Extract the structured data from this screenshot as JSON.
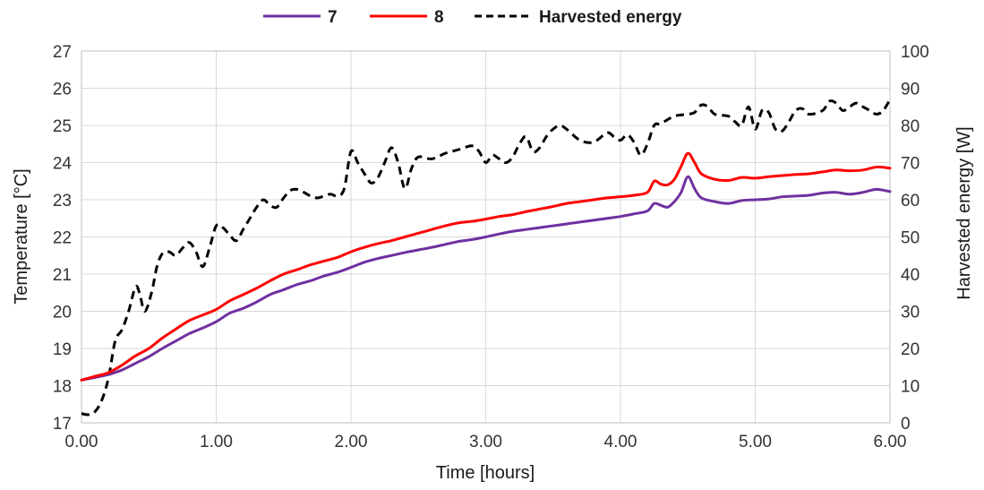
{
  "chart_data": {
    "type": "line",
    "xlabel": "Time [hours]",
    "ylabel": "Temperature [°C]",
    "ylabel_right": "Harvested energy [W]",
    "xlim": [
      0,
      6
    ],
    "ylim": [
      17,
      27
    ],
    "ylim_right": [
      0,
      100
    ],
    "x_ticks": [
      "0.00",
      "1.00",
      "2.00",
      "3.00",
      "4.00",
      "5.00",
      "6.00"
    ],
    "y_ticks": [
      "17",
      "18",
      "19",
      "20",
      "21",
      "22",
      "23",
      "24",
      "25",
      "26",
      "27"
    ],
    "y_ticks_right": [
      "0",
      "10",
      "20",
      "30",
      "40",
      "50",
      "60",
      "70",
      "80",
      "90",
      "100"
    ],
    "grid": true,
    "legend_position": "top-center",
    "series": [
      {
        "name": "7",
        "axis": "left",
        "color": "#7030a0",
        "dash": "solid",
        "x": [
          0,
          0.1,
          0.2,
          0.3,
          0.4,
          0.5,
          0.6,
          0.7,
          0.8,
          0.9,
          1.0,
          1.1,
          1.2,
          1.3,
          1.4,
          1.5,
          1.6,
          1.7,
          1.8,
          1.9,
          2.0,
          2.1,
          2.2,
          2.3,
          2.4,
          2.5,
          2.6,
          2.7,
          2.8,
          2.9,
          3.0,
          3.1,
          3.2,
          3.3,
          3.4,
          3.5,
          3.6,
          3.7,
          3.8,
          3.9,
          4.0,
          4.1,
          4.2,
          4.25,
          4.3,
          4.35,
          4.4,
          4.45,
          4.5,
          4.55,
          4.6,
          4.7,
          4.8,
          4.9,
          5.0,
          5.1,
          5.2,
          5.3,
          5.4,
          5.5,
          5.6,
          5.7,
          5.8,
          5.9,
          6.0
        ],
        "values": [
          18.15,
          18.22,
          18.3,
          18.42,
          18.6,
          18.78,
          19.0,
          19.2,
          19.4,
          19.55,
          19.72,
          19.95,
          20.08,
          20.25,
          20.45,
          20.58,
          20.72,
          20.82,
          20.95,
          21.05,
          21.18,
          21.32,
          21.42,
          21.5,
          21.58,
          21.65,
          21.72,
          21.8,
          21.88,
          21.93,
          22.0,
          22.08,
          22.15,
          22.2,
          22.25,
          22.3,
          22.35,
          22.4,
          22.45,
          22.5,
          22.55,
          22.62,
          22.7,
          22.9,
          22.85,
          22.8,
          22.95,
          23.2,
          23.62,
          23.3,
          23.05,
          22.95,
          22.9,
          22.98,
          23.0,
          23.02,
          23.08,
          23.1,
          23.12,
          23.18,
          23.2,
          23.15,
          23.2,
          23.28,
          23.22
        ]
      },
      {
        "name": "8",
        "axis": "left",
        "color": "#ff0000",
        "dash": "solid",
        "x": [
          0,
          0.1,
          0.2,
          0.3,
          0.4,
          0.5,
          0.6,
          0.7,
          0.8,
          0.9,
          1.0,
          1.1,
          1.2,
          1.3,
          1.4,
          1.5,
          1.6,
          1.7,
          1.8,
          1.9,
          2.0,
          2.1,
          2.2,
          2.3,
          2.4,
          2.5,
          2.6,
          2.7,
          2.8,
          2.9,
          3.0,
          3.1,
          3.2,
          3.3,
          3.4,
          3.5,
          3.6,
          3.7,
          3.8,
          3.9,
          4.0,
          4.1,
          4.2,
          4.25,
          4.3,
          4.35,
          4.4,
          4.45,
          4.5,
          4.55,
          4.6,
          4.7,
          4.8,
          4.9,
          5.0,
          5.1,
          5.2,
          5.3,
          5.4,
          5.5,
          5.6,
          5.7,
          5.8,
          5.9,
          6.0
        ],
        "values": [
          18.15,
          18.25,
          18.35,
          18.55,
          18.8,
          19.0,
          19.28,
          19.52,
          19.75,
          19.9,
          20.05,
          20.28,
          20.45,
          20.62,
          20.82,
          21.0,
          21.12,
          21.25,
          21.35,
          21.45,
          21.6,
          21.72,
          21.82,
          21.9,
          22.0,
          22.1,
          22.2,
          22.3,
          22.38,
          22.42,
          22.48,
          22.55,
          22.6,
          22.68,
          22.75,
          22.82,
          22.9,
          22.95,
          23.0,
          23.05,
          23.08,
          23.12,
          23.2,
          23.5,
          23.42,
          23.4,
          23.55,
          23.9,
          24.25,
          24.0,
          23.7,
          23.55,
          23.52,
          23.6,
          23.58,
          23.62,
          23.65,
          23.68,
          23.7,
          23.75,
          23.8,
          23.78,
          23.8,
          23.88,
          23.85
        ]
      },
      {
        "name": "Harvested energy",
        "axis": "right",
        "color": "#000000",
        "dash": "dashed",
        "x": [
          0,
          0.05,
          0.1,
          0.15,
          0.2,
          0.25,
          0.3,
          0.35,
          0.4,
          0.43,
          0.47,
          0.52,
          0.56,
          0.6,
          0.65,
          0.7,
          0.75,
          0.8,
          0.85,
          0.9,
          0.95,
          1.0,
          1.05,
          1.1,
          1.15,
          1.2,
          1.25,
          1.3,
          1.35,
          1.4,
          1.45,
          1.5,
          1.55,
          1.6,
          1.65,
          1.7,
          1.75,
          1.8,
          1.85,
          1.9,
          1.95,
          2.0,
          2.05,
          2.1,
          2.15,
          2.2,
          2.25,
          2.3,
          2.35,
          2.4,
          2.45,
          2.5,
          2.6,
          2.7,
          2.8,
          2.9,
          2.95,
          3.0,
          3.05,
          3.1,
          3.15,
          3.2,
          3.25,
          3.3,
          3.35,
          3.4,
          3.45,
          3.5,
          3.55,
          3.6,
          3.7,
          3.8,
          3.9,
          3.95,
          4.0,
          4.05,
          4.1,
          4.15,
          4.2,
          4.25,
          4.3,
          4.4,
          4.5,
          4.55,
          4.6,
          4.65,
          4.7,
          4.8,
          4.85,
          4.9,
          4.95,
          5.0,
          5.05,
          5.1,
          5.15,
          5.2,
          5.25,
          5.3,
          5.35,
          5.4,
          5.5,
          5.55,
          5.6,
          5.65,
          5.7,
          5.75,
          5.8,
          5.85,
          5.9,
          5.95,
          6.0
        ],
        "values": [
          2.5,
          2.2,
          3.0,
          6.0,
          12.0,
          22.0,
          25.0,
          30.0,
          36.5,
          35.0,
          30.0,
          35.0,
          42.0,
          45.5,
          46.0,
          45.0,
          47.0,
          48.5,
          46.0,
          42.0,
          47.0,
          53.0,
          52.5,
          50.5,
          49.0,
          52.0,
          55.0,
          58.0,
          60.0,
          58.5,
          58.0,
          60.5,
          62.5,
          62.8,
          62.0,
          61.0,
          60.5,
          61.0,
          61.5,
          61.0,
          63.0,
          73.0,
          70.0,
          67.0,
          64.5,
          66.0,
          70.0,
          74.0,
          70.0,
          63.0,
          68.5,
          71.5,
          71.0,
          72.5,
          73.5,
          74.5,
          73.0,
          70.0,
          72.0,
          71.0,
          70.0,
          71.5,
          75.0,
          77.0,
          73.0,
          74.0,
          77.0,
          79.0,
          80.0,
          79.0,
          76.0,
          75.5,
          78.0,
          77.0,
          76.0,
          77.5,
          75.5,
          72.0,
          75.0,
          80.0,
          80.5,
          82.5,
          83.0,
          83.5,
          85.5,
          85.0,
          83.0,
          82.5,
          81.0,
          80.0,
          85.0,
          79.0,
          84.0,
          83.5,
          79.0,
          78.5,
          81.0,
          84.0,
          84.5,
          83.0,
          84.0,
          86.5,
          86.0,
          84.0,
          85.0,
          86.0,
          85.0,
          84.0,
          83.0,
          84.0,
          87.0
        ]
      }
    ]
  }
}
